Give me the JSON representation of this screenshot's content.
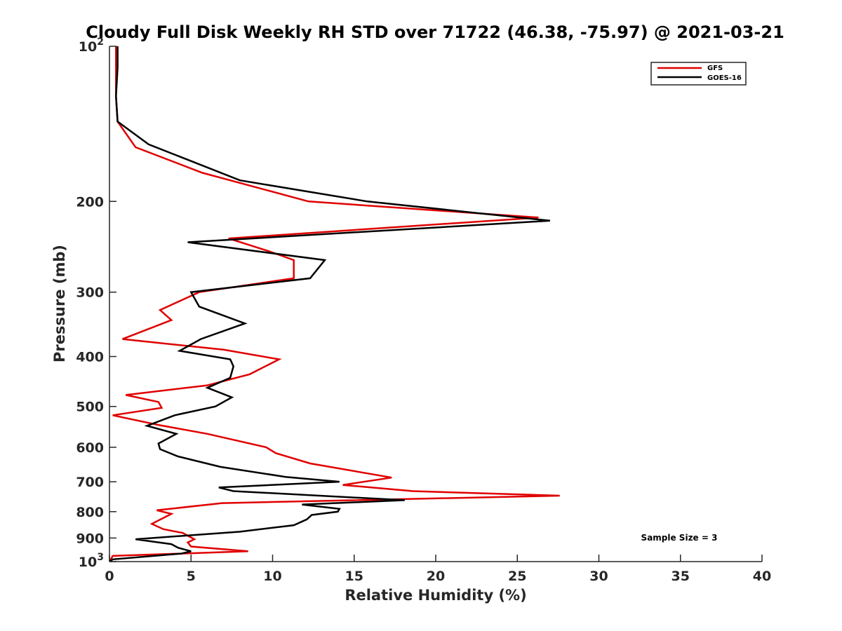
{
  "chart_data": {
    "type": "line",
    "title": "Cloudy Full Disk Weekly RH STD over 71722 (46.38, -75.97) @ 2021-03-21",
    "xlabel": "Relative Humidity (%)",
    "ylabel": "Pressure (mb)",
    "xlim": [
      0,
      40
    ],
    "ylim": [
      100,
      1000
    ],
    "yscale": "log",
    "y_reversed": true,
    "x_ticks": [
      "0",
      "5",
      "10",
      "15",
      "20",
      "25",
      "30",
      "35",
      "40"
    ],
    "y_ticks": [
      {
        "value": 100,
        "label": "10",
        "sup": "2"
      },
      {
        "value": 200,
        "label": "200"
      },
      {
        "value": 300,
        "label": "300"
      },
      {
        "value": 400,
        "label": "400"
      },
      {
        "value": 500,
        "label": "500"
      },
      {
        "value": 600,
        "label": "600"
      },
      {
        "value": 700,
        "label": "700"
      },
      {
        "value": 800,
        "label": "800"
      },
      {
        "value": 900,
        "label": "900"
      },
      {
        "value": 1000,
        "label": "10",
        "sup": "3"
      }
    ],
    "legend_position": "top-right",
    "annotation": "Sample Size = 3",
    "series": [
      {
        "name": "GFS",
        "color": "#e00000",
        "points": [
          [
            0.4,
            100
          ],
          [
            0.4,
            110
          ],
          [
            0.4,
            125
          ],
          [
            0.5,
            140
          ],
          [
            1.6,
            157
          ],
          [
            5.7,
            176
          ],
          [
            12.2,
            200
          ],
          [
            26.3,
            215
          ],
          [
            7.3,
            236
          ],
          [
            9.8,
            250
          ],
          [
            11.3,
            260
          ],
          [
            11.3,
            282
          ],
          [
            5.5,
            300
          ],
          [
            3.1,
            325
          ],
          [
            3.8,
            340
          ],
          [
            0.8,
            370
          ],
          [
            7.0,
            388
          ],
          [
            10.4,
            405
          ],
          [
            8.6,
            433
          ],
          [
            6.0,
            455
          ],
          [
            1.0,
            475
          ],
          [
            3.0,
            490
          ],
          [
            3.2,
            503
          ],
          [
            0.2,
            520
          ],
          [
            3.0,
            543
          ],
          [
            6.0,
            565
          ],
          [
            9.6,
            600
          ],
          [
            10.2,
            616
          ],
          [
            12.3,
            645
          ],
          [
            17.3,
            687
          ],
          [
            14.3,
            710
          ],
          [
            18.6,
            730
          ],
          [
            27.6,
            745
          ],
          [
            6.9,
            770
          ],
          [
            2.9,
            795
          ],
          [
            3.8,
            808
          ],
          [
            2.6,
            845
          ],
          [
            3.3,
            865
          ],
          [
            4.5,
            880
          ],
          [
            5.2,
            905
          ],
          [
            4.8,
            918
          ],
          [
            5.0,
            935
          ],
          [
            8.5,
            955
          ],
          [
            0.2,
            975
          ],
          [
            0.0,
            1000
          ]
        ]
      },
      {
        "name": "GOES-16",
        "color": "#000000",
        "points": [
          [
            0.5,
            100
          ],
          [
            0.5,
            110
          ],
          [
            0.4,
            125
          ],
          [
            0.5,
            140
          ],
          [
            2.4,
            155
          ],
          [
            8.0,
            182
          ],
          [
            15.8,
            200
          ],
          [
            27.0,
            218
          ],
          [
            4.8,
            240
          ],
          [
            13.2,
            260
          ],
          [
            12.3,
            282
          ],
          [
            5.0,
            300
          ],
          [
            5.5,
            320
          ],
          [
            8.3,
            345
          ],
          [
            5.6,
            370
          ],
          [
            4.3,
            390
          ],
          [
            7.4,
            405
          ],
          [
            7.6,
            418
          ],
          [
            7.4,
            440
          ],
          [
            6.0,
            460
          ],
          [
            7.5,
            480
          ],
          [
            6.5,
            500
          ],
          [
            4.0,
            520
          ],
          [
            2.3,
            545
          ],
          [
            4.1,
            565
          ],
          [
            3.0,
            590
          ],
          [
            3.1,
            605
          ],
          [
            4.2,
            625
          ],
          [
            6.8,
            655
          ],
          [
            10.8,
            685
          ],
          [
            14.1,
            700
          ],
          [
            6.7,
            718
          ],
          [
            7.6,
            730
          ],
          [
            18.1,
            760
          ],
          [
            11.8,
            775
          ],
          [
            14.1,
            790
          ],
          [
            14.0,
            800
          ],
          [
            12.4,
            812
          ],
          [
            12.1,
            828
          ],
          [
            11.3,
            850
          ],
          [
            8.0,
            875
          ],
          [
            1.6,
            905
          ],
          [
            3.8,
            925
          ],
          [
            4.2,
            940
          ],
          [
            5.0,
            955
          ],
          [
            4.4,
            965
          ],
          [
            0.2,
            990
          ],
          [
            0.0,
            1000
          ]
        ]
      }
    ]
  }
}
